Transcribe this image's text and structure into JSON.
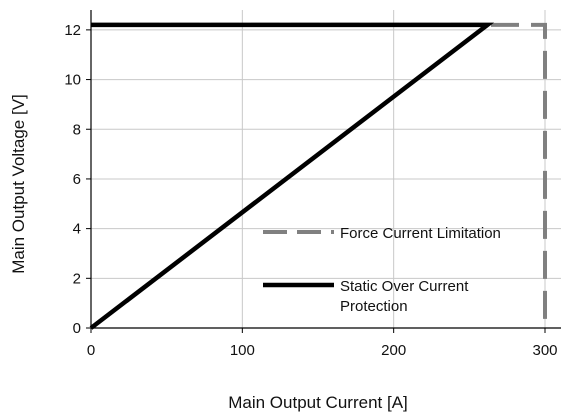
{
  "chart_data": {
    "type": "line",
    "title": "",
    "xlabel": "Main Output Current [A]",
    "ylabel": "Main Output Voltage [V]",
    "xlim": [
      0,
      300
    ],
    "ylim": [
      0,
      12.8
    ],
    "xticks": [
      0,
      100,
      200,
      300
    ],
    "yticks": [
      0,
      2,
      4,
      6,
      8,
      10,
      12
    ],
    "grid": true,
    "legend_position": "bottom-right",
    "series": [
      {
        "name": "Force Current Limitation",
        "style": "dashed",
        "color": "#808080",
        "points": [
          [
            0,
            12.2
          ],
          [
            300,
            12.2
          ],
          [
            300,
            0
          ]
        ]
      },
      {
        "name": "Static Over Current Protection",
        "style": "solid",
        "color": "#000000",
        "points": [
          [
            0,
            0
          ],
          [
            262,
            12.2
          ],
          [
            0,
            12.2
          ]
        ]
      }
    ],
    "legend": [
      {
        "series": 0,
        "label_lines": [
          "Force Current Limitation"
        ]
      },
      {
        "series": 1,
        "label_lines": [
          "Static Over Current",
          "Protection"
        ]
      }
    ]
  }
}
